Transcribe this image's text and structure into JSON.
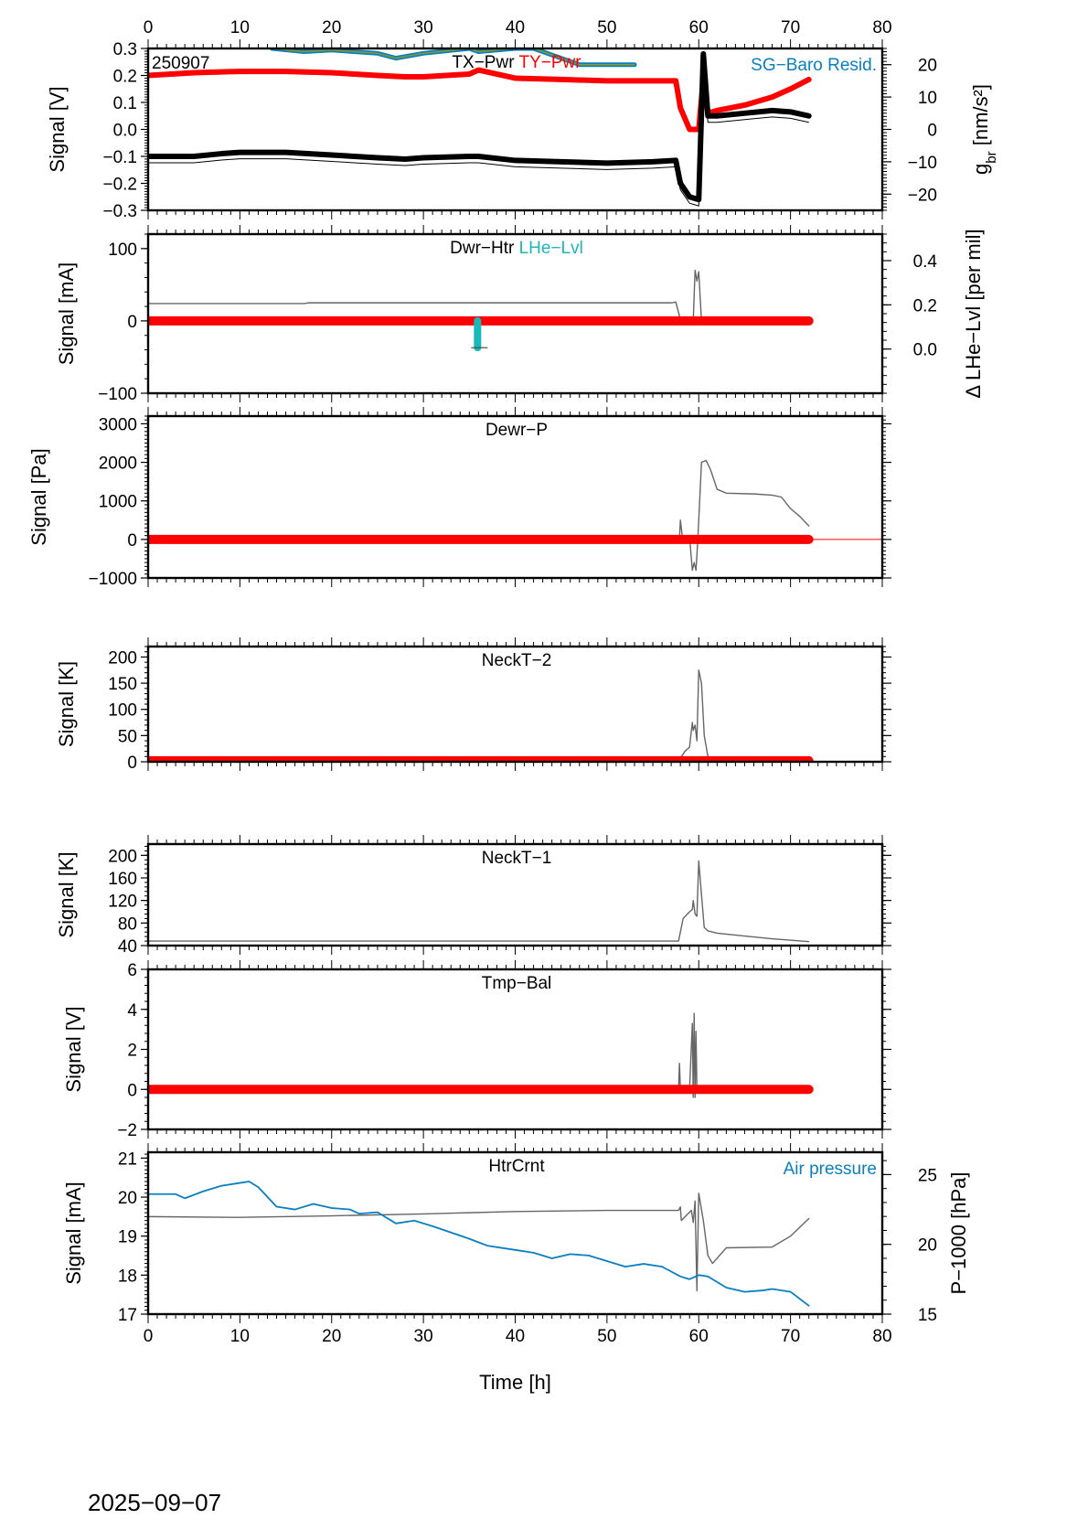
{
  "chart_data": [
    {
      "id": "tx-ty-pwr",
      "type": "scatter",
      "station_code": "250907",
      "title_labels": [
        {
          "text": "TX−Pwr",
          "color": "#000000"
        },
        {
          "text": "TY−Pwr",
          "color": "#ff0000"
        }
      ],
      "right_label": {
        "text": "SG−Baro Resid.",
        "color": "#0a7fbf"
      },
      "ylabel": "Signal [V]",
      "ylim": [
        -0.3,
        0.3
      ],
      "yticks": [
        "0.3",
        "0.2",
        "0.1",
        "0.0",
        "−0.1",
        "−0.2",
        "−0.3"
      ],
      "ytick_values": [
        0.3,
        0.2,
        0.1,
        0.0,
        -0.1,
        -0.2,
        -0.3
      ],
      "y2label_main": "g",
      "y2label_sub": "br",
      "y2label_rest": " [nm/s²]",
      "y2lim": [
        -25,
        25
      ],
      "y2ticks": [
        "20",
        "10",
        "0",
        "−10",
        "−20"
      ],
      "y2tick_values": [
        20,
        10,
        0,
        -10,
        -20
      ],
      "series": [
        {
          "name": "TY-Pwr",
          "color": "#ff0000",
          "x": [
            0,
            5,
            10,
            15,
            20,
            25,
            28,
            30,
            35,
            36,
            40,
            45,
            50,
            55,
            57.5,
            58,
            59,
            60,
            60.5,
            61,
            62,
            65,
            68,
            70,
            72
          ],
          "y": [
            0.2,
            0.21,
            0.215,
            0.215,
            0.21,
            0.2,
            0.195,
            0.195,
            0.205,
            0.22,
            0.19,
            0.185,
            0.18,
            0.18,
            0.18,
            0.08,
            0.0,
            0.0,
            0.19,
            0.06,
            0.07,
            0.09,
            0.12,
            0.15,
            0.185
          ]
        },
        {
          "name": "TX-Pwr",
          "color": "#000000",
          "x": [
            0,
            5,
            8,
            10,
            15,
            20,
            25,
            28,
            30,
            35,
            36,
            40,
            45,
            50,
            55,
            57.5,
            58,
            59,
            60,
            60.5,
            61,
            62,
            65,
            68,
            70,
            72
          ],
          "y": [
            -0.1,
            -0.1,
            -0.09,
            -0.085,
            -0.085,
            -0.095,
            -0.105,
            -0.11,
            -0.105,
            -0.1,
            -0.1,
            -0.115,
            -0.12,
            -0.125,
            -0.12,
            -0.115,
            -0.2,
            -0.25,
            -0.26,
            0.28,
            0.05,
            0.05,
            0.06,
            0.07,
            0.065,
            0.05
          ]
        },
        {
          "name": "SG-Baro Resid.",
          "color": "#0a7fbf",
          "axis": "right",
          "x": [
            13.5,
            17,
            20,
            25,
            27,
            30,
            35,
            36,
            40,
            42,
            47,
            53
          ],
          "y": [
            25,
            24,
            24.5,
            23.5,
            22,
            23.5,
            25,
            24,
            25,
            25,
            20,
            20
          ]
        }
      ],
      "xlim": [
        0,
        80
      ],
      "xticks_top": [
        "0",
        "10",
        "20",
        "30",
        "40",
        "50",
        "60",
        "70",
        "80"
      ]
    },
    {
      "id": "dwr-htr",
      "type": "line",
      "title_labels": [
        {
          "text": "Dwr−Htr",
          "color": "#000000"
        },
        {
          "text": "LHe−Lvl",
          "color": "#1ab8b8"
        }
      ],
      "ylabel": "Signal [mA]",
      "ylim": [
        -100,
        120
      ],
      "yticks": [
        "100",
        "0",
        "−100"
      ],
      "ytick_values": [
        100,
        0,
        -100
      ],
      "y2label": "Δ LHe−Lvl [per mil]",
      "y2lim": [
        -0.2,
        0.52
      ],
      "y2ticks": [
        "0.4",
        "0.2",
        "0.0"
      ],
      "y2tick_values": [
        0.4,
        0.2,
        0.0
      ],
      "series": [
        {
          "name": "Dwr-Htr",
          "color": "#666666",
          "x": [
            0,
            17,
            17.5,
            57,
            57.5,
            58,
            58.1,
            59.4,
            59.6,
            59.8,
            60,
            60.3
          ],
          "y": [
            24,
            24,
            25,
            25,
            26,
            2,
            0,
            0,
            70,
            55,
            68,
            0
          ]
        },
        {
          "name": "LHe-Lvl zero",
          "color": "#ff0000",
          "x": [
            0,
            72
          ],
          "y": [
            0,
            0
          ]
        },
        {
          "name": "LHe-Lvl drop",
          "color": "#1ab8b8",
          "x": [
            35.9,
            35.9
          ],
          "y": [
            0,
            -37
          ]
        }
      ],
      "xlim": [
        0,
        80
      ]
    },
    {
      "id": "dewr-p",
      "type": "line",
      "title_labels": [
        {
          "text": "Dewr−P",
          "color": "#000000"
        }
      ],
      "ylabel": "Signal [Pa]",
      "ylim": [
        -1000,
        3200
      ],
      "yticks": [
        "3000",
        "2000",
        "1000",
        "0",
        "−1000"
      ],
      "ytick_values": [
        3000,
        2000,
        1000,
        0,
        -1000
      ],
      "series": [
        {
          "name": "Dewr-P",
          "color": "#666666",
          "x": [
            57.9,
            58,
            58.2,
            59,
            59.3,
            59.5,
            59.7,
            59.9,
            60.3,
            60.8,
            61.3,
            62,
            63,
            66,
            68,
            69,
            70,
            71,
            72
          ],
          "y": [
            0,
            500,
            100,
            60,
            -800,
            -600,
            -800,
            0,
            2000,
            2050,
            1800,
            1300,
            1200,
            1180,
            1150,
            1100,
            800,
            600,
            350
          ]
        },
        {
          "name": "Dewr-P ref",
          "color": "#ff0000",
          "x": [
            0,
            72
          ],
          "y": [
            0,
            0
          ]
        },
        {
          "name": "Dewr-P tail",
          "color": "#ff0000",
          "x": [
            72,
            80
          ],
          "y": [
            0,
            0
          ]
        }
      ],
      "xlim": [
        0,
        80
      ]
    },
    {
      "id": "neckt-2",
      "type": "line",
      "title_labels": [
        {
          "text": "NeckT−2",
          "color": "#000000"
        }
      ],
      "ylabel": "Signal [K]",
      "ylim": [
        0,
        220
      ],
      "yticks": [
        "200",
        "150",
        "100",
        "50",
        "0"
      ],
      "ytick_values": [
        200,
        150,
        100,
        50,
        0
      ],
      "series": [
        {
          "name": "NeckT-2",
          "color": "#666666",
          "x": [
            0,
            57.8,
            58.5,
            59,
            59.3,
            59.4,
            59.6,
            59.8,
            60,
            60.3,
            60.6,
            61,
            62,
            65,
            72
          ],
          "y": [
            2,
            2,
            20,
            28,
            75,
            60,
            70,
            40,
            175,
            150,
            50,
            10,
            4,
            3,
            2
          ]
        },
        {
          "name": "NeckT-2 ref",
          "color": "#ff0000",
          "x": [
            0,
            72
          ],
          "y": [
            2,
            2
          ]
        }
      ],
      "xlim": [
        0,
        80
      ]
    },
    {
      "id": "neckt-1",
      "type": "line",
      "title_labels": [
        {
          "text": "NeckT−1",
          "color": "#000000"
        }
      ],
      "ylabel": "Signal [K]",
      "ylim": [
        40,
        220
      ],
      "yticks": [
        "200",
        "160",
        "120",
        "80",
        "40"
      ],
      "ytick_values": [
        200,
        160,
        120,
        80,
        40
      ],
      "series": [
        {
          "name": "NeckT-1",
          "color": "#666666",
          "x": [
            0,
            57.8,
            58.3,
            59,
            59.3,
            59.4,
            59.6,
            59.8,
            60,
            60.3,
            60.6,
            61,
            62,
            65,
            68,
            72
          ],
          "y": [
            48,
            48,
            88,
            100,
            104,
            120,
            96,
            92,
            190,
            130,
            72,
            66,
            62,
            57,
            52,
            47
          ]
        }
      ],
      "xlim": [
        0,
        80
      ]
    },
    {
      "id": "tmp-bal",
      "type": "line",
      "title_labels": [
        {
          "text": "Tmp−Bal",
          "color": "#000000"
        }
      ],
      "ylabel": "Signal [V]",
      "ylim": [
        -2,
        6
      ],
      "yticks": [
        "6",
        "4",
        "2",
        "0",
        "−2"
      ],
      "ytick_values": [
        6,
        4,
        2,
        0,
        -2
      ],
      "series": [
        {
          "name": "Tmp-Bal",
          "color": "#666666",
          "x": [
            57.8,
            57.9,
            58,
            59,
            59.3,
            59.4,
            59.5,
            59.6,
            59.7,
            59.8,
            60
          ],
          "y": [
            0,
            1.3,
            0,
            0,
            3.3,
            -0.4,
            3.8,
            -0.4,
            2.9,
            0,
            0
          ]
        },
        {
          "name": "Tmp-Bal ref",
          "color": "#ff0000",
          "x": [
            0,
            72
          ],
          "y": [
            0,
            0
          ]
        }
      ],
      "xlim": [
        0,
        80
      ]
    },
    {
      "id": "htrcrnt",
      "type": "line",
      "title_labels": [
        {
          "text": "HtrCrnt",
          "color": "#000000"
        }
      ],
      "right_label": {
        "text": "Air pressure",
        "color": "#0a7fbf"
      },
      "ylabel": "Signal [mA]",
      "ylim": [
        17,
        21.15
      ],
      "yticks": [
        "21",
        "20",
        "19",
        "18",
        "17"
      ],
      "ytick_values": [
        21,
        20,
        19,
        18,
        17
      ],
      "y2label": "P−1000 [hPa]",
      "y2lim": [
        15,
        26.6
      ],
      "y2ticks": [
        "25",
        "20",
        "15"
      ],
      "y2tick_values": [
        25,
        20,
        15
      ],
      "series": [
        {
          "name": "HtrCrnt",
          "color": "#666666",
          "x": [
            0,
            10,
            20,
            30,
            40,
            50,
            57.8,
            58,
            58.1,
            59.2,
            59.4,
            59.6,
            59.8,
            60,
            60.5,
            61,
            61.5,
            63,
            68,
            70,
            72
          ],
          "y": [
            19.5,
            19.48,
            19.52,
            19.57,
            19.63,
            19.66,
            19.66,
            19.75,
            19.4,
            19.66,
            19.35,
            19.9,
            17.6,
            20.1,
            19.4,
            18.5,
            18.3,
            18.7,
            18.72,
            19.0,
            19.45
          ]
        },
        {
          "name": "Air pressure",
          "color": "#0a7fbf",
          "axis": "right",
          "x": [
            0,
            3,
            4,
            6,
            8,
            10,
            11,
            12,
            14,
            16,
            18,
            20,
            22,
            23,
            25,
            27,
            29,
            31,
            35,
            37,
            40,
            42,
            44,
            46,
            48,
            50,
            52,
            54,
            56,
            58,
            59,
            60,
            61,
            63,
            65,
            67,
            68,
            70,
            72
          ],
          "y": [
            23.6,
            23.6,
            23.3,
            23.8,
            24.2,
            24.4,
            24.5,
            24.1,
            22.7,
            22.5,
            22.9,
            22.6,
            22.5,
            22.2,
            22.3,
            21.5,
            21.7,
            21.3,
            20.4,
            19.9,
            19.6,
            19.4,
            19.0,
            19.3,
            19.2,
            18.8,
            18.4,
            18.6,
            18.4,
            17.7,
            17.5,
            17.8,
            17.7,
            16.9,
            16.6,
            16.7,
            16.8,
            16.6,
            15.6
          ]
        }
      ],
      "xlim": [
        0,
        80
      ],
      "xlabel": "Time [h]",
      "xticks_bottom": [
        "0",
        "10",
        "20",
        "30",
        "40",
        "50",
        "60",
        "70",
        "80"
      ]
    }
  ],
  "footer": {
    "date": "2025−09−07",
    "xlabel": "Time [h]"
  }
}
